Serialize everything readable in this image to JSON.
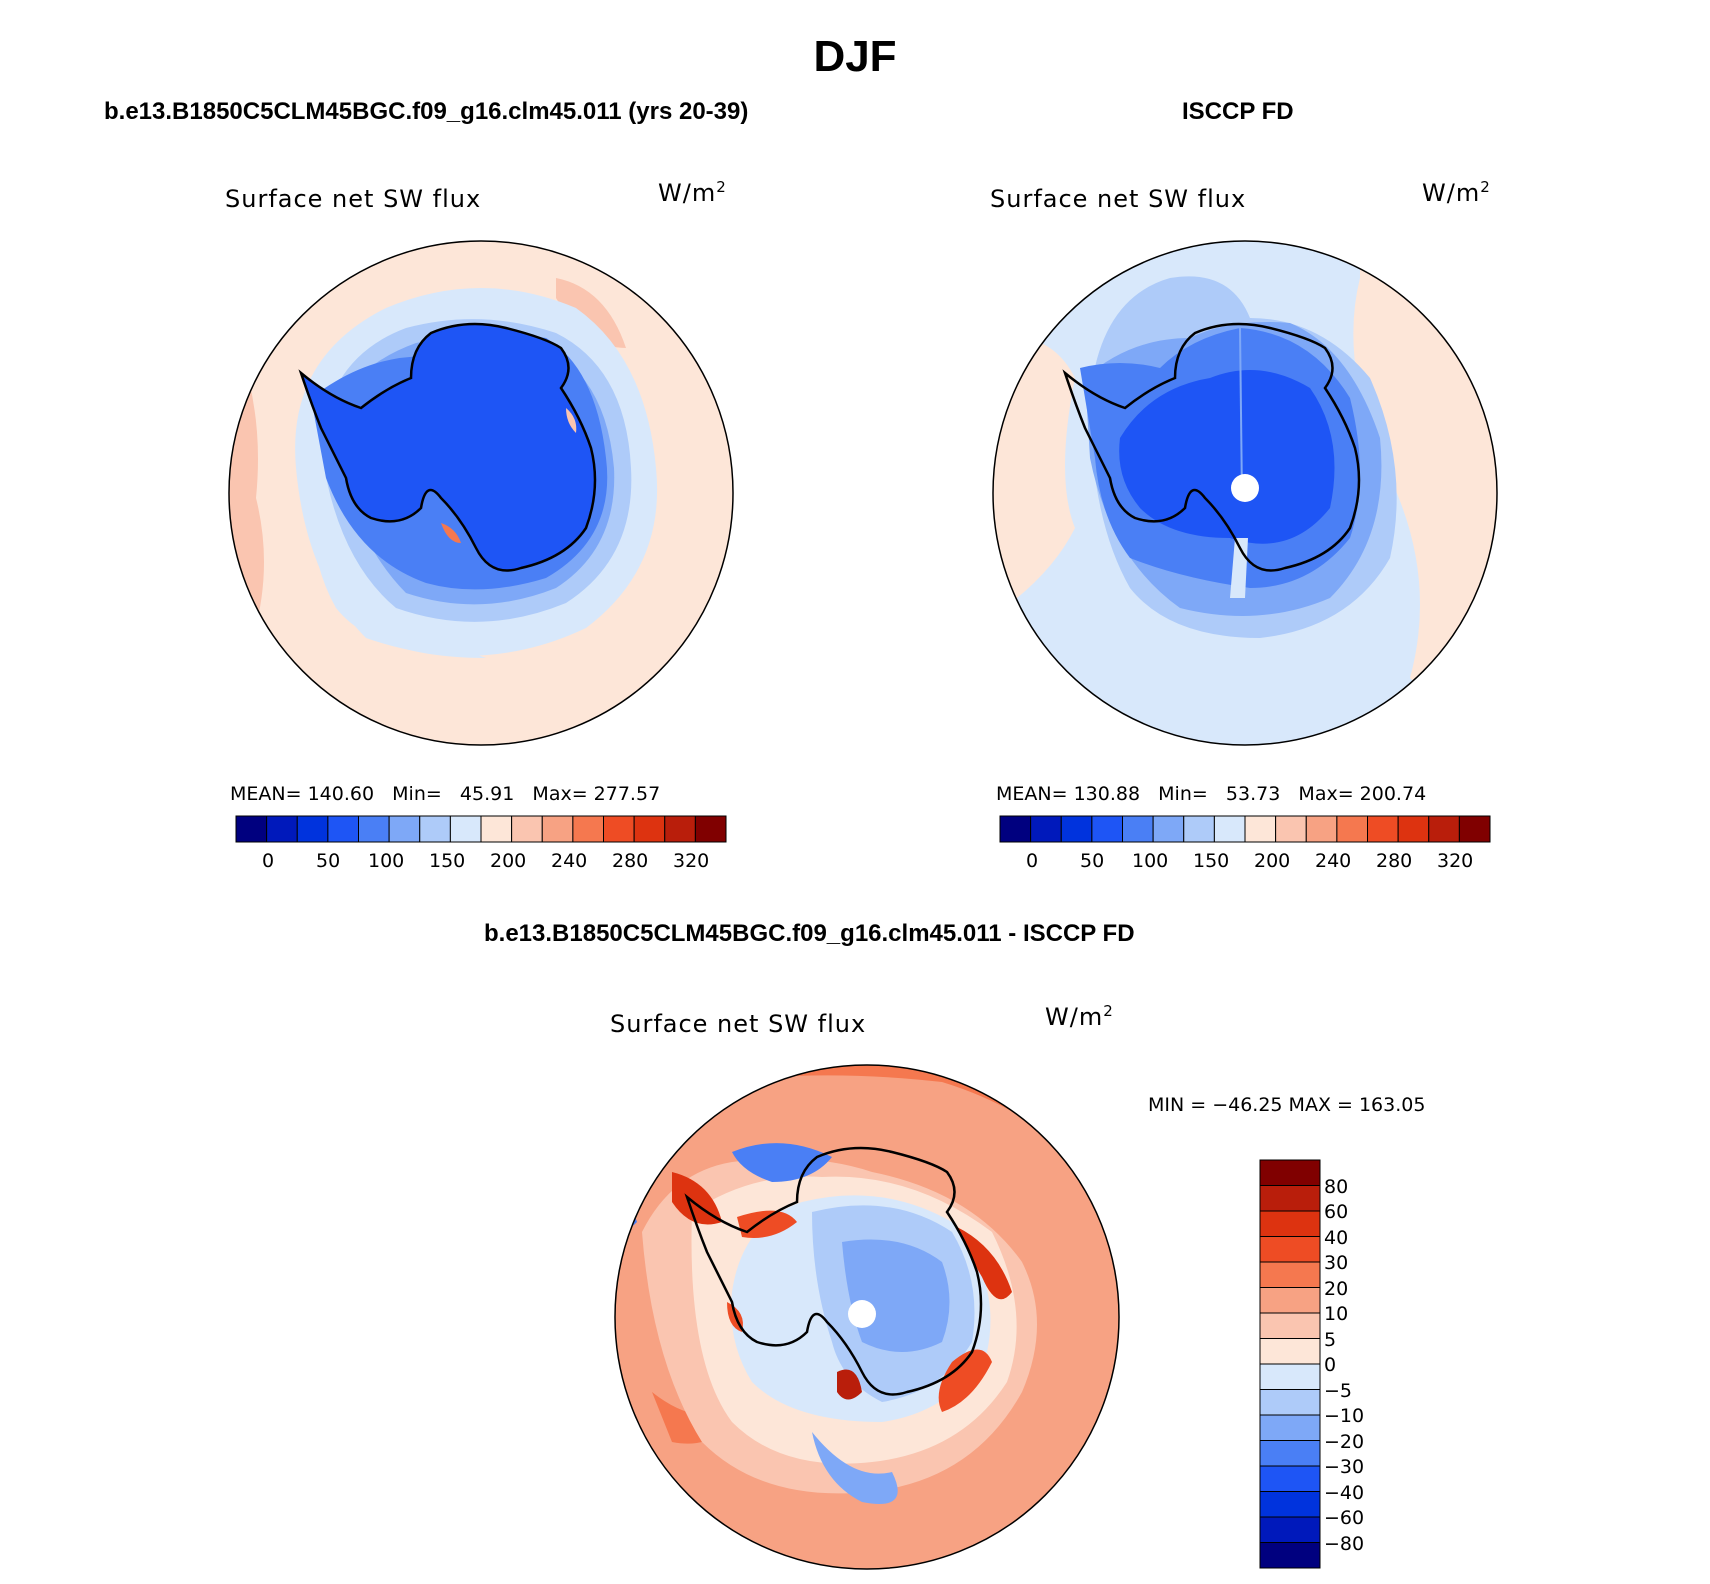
{
  "figure": {
    "season": "DJF",
    "model_title": "b.e13.B1850C5CLM45BGC.f09_g16.clm45.011 (yrs 20-39)",
    "obs_title": "ISCCP FD",
    "diff_title": "b.e13.B1850C5CLM45BGC.f09_g16.clm45.011 - ISCCP FD"
  },
  "colors": {
    "abs_scale": [
      "#00007f",
      "#0019bb",
      "#0033dd",
      "#1e55f5",
      "#4a7ff5",
      "#7ea8f7",
      "#aecbf9",
      "#d8e8fb",
      "#fde6d8",
      "#fac5b0",
      "#f7a283",
      "#f5784f",
      "#ee4c24",
      "#dd3310",
      "#b91e0b",
      "#800000"
    ],
    "diff_scale": [
      "#00007f",
      "#0019bb",
      "#0033dd",
      "#1e55f5",
      "#4a7ff5",
      "#7ea8f7",
      "#aecbf9",
      "#d8e8fb",
      "#fde6d8",
      "#fac5b0",
      "#f7a283",
      "#f5784f",
      "#ee4c24",
      "#dd3310",
      "#b91e0b",
      "#800000"
    ],
    "coastline": "#000000"
  },
  "panels": [
    {
      "id": "model",
      "variable": "Surface net SW flux",
      "units_base": "W/m",
      "units_exp": "2",
      "stats": "MEAN= 140.60   Min=   45.91   Max= 277.57",
      "colorbar_ticks": [
        "0",
        "50",
        "100",
        "150",
        "200",
        "240",
        "280",
        "320"
      ]
    },
    {
      "id": "obs",
      "variable": "Surface net SW flux",
      "units_base": "W/m",
      "units_exp": "2",
      "stats": "MEAN= 130.88   Min=   53.73   Max= 200.74",
      "colorbar_ticks": [
        "0",
        "50",
        "100",
        "150",
        "200",
        "240",
        "280",
        "320"
      ]
    },
    {
      "id": "diff",
      "variable": "Surface net SW flux",
      "units_base": "W/m",
      "units_exp": "2",
      "stats": "MIN = −46.25 MAX = 163.05",
      "colorbar_ticks": [
        "80",
        "60",
        "40",
        "30",
        "20",
        "10",
        "5",
        "0",
        "−5",
        "−10",
        "−20",
        "−30",
        "−40",
        "−60",
        "−80"
      ]
    }
  ]
}
